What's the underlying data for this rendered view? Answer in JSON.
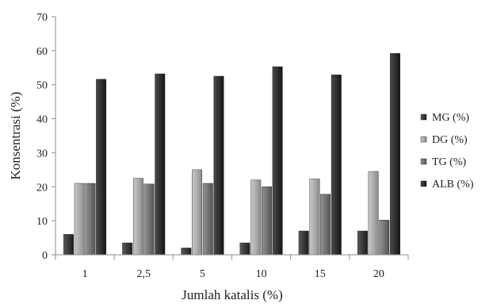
{
  "chart_data": {
    "type": "bar",
    "xlabel": "Jumlah katalis (%)",
    "ylabel": "Konsentrasi (%)",
    "ylim": [
      0,
      70
    ],
    "yticks": [
      "0",
      "10",
      "20",
      "30",
      "40",
      "50",
      "60",
      "70"
    ],
    "categories": [
      "1",
      "2,5",
      "5",
      "10",
      "15",
      "20"
    ],
    "series": [
      {
        "name": "MG (%)",
        "values": [
          6.0,
          3.5,
          2.0,
          3.5,
          7.0,
          7.0
        ],
        "color": "#3d3d3d"
      },
      {
        "name": "DG (%)",
        "values": [
          21.0,
          22.5,
          25.0,
          22.0,
          22.3,
          24.5
        ],
        "color": "#a8a8a8"
      },
      {
        "name": "TG (%)",
        "values": [
          21.0,
          20.8,
          21.0,
          20.0,
          17.8,
          10.2
        ],
        "color": "#737373"
      },
      {
        "name": "ALB (%)",
        "values": [
          51.6,
          53.2,
          52.5,
          55.3,
          52.9,
          59.2
        ],
        "color": "#2e2e2e"
      }
    ],
    "grid": false,
    "legend_position": "right"
  }
}
